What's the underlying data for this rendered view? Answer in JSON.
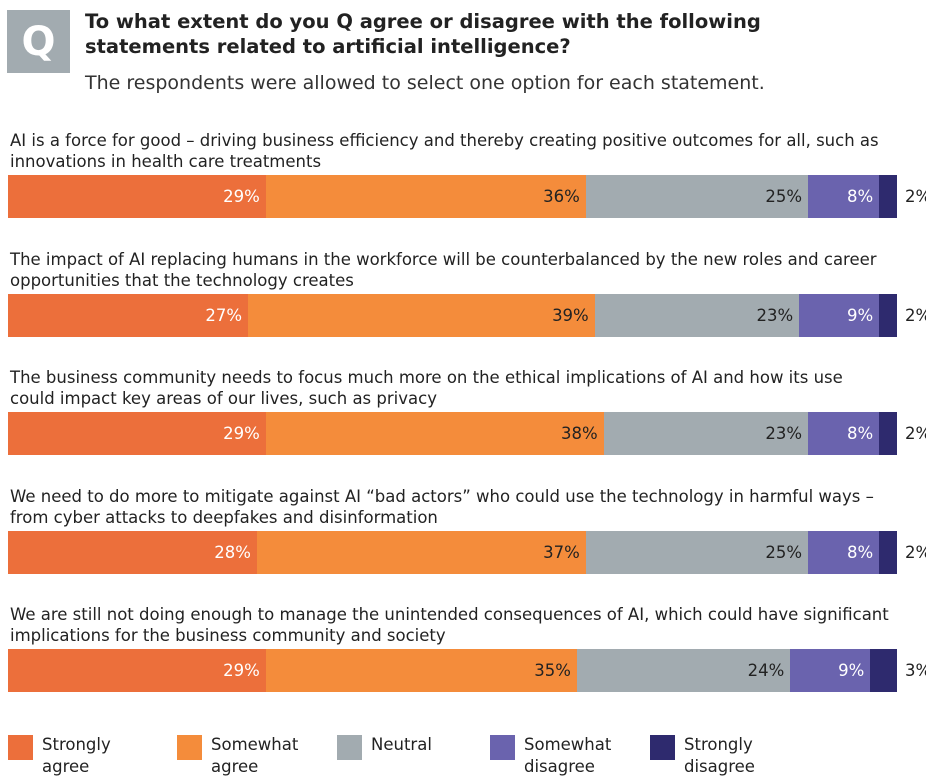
{
  "header": {
    "badge": "Q",
    "title": "To what extent do you Q agree or disagree with the following statements related to artificial intelligence?",
    "subtitle": "The respondents were allowed to select one option for each statement."
  },
  "chart_data": {
    "type": "stacked_bar_horizontal",
    "categories": [
      "AI is a force for good – driving business efficiency and thereby creating positive outcomes for all, such as innovations in health care treatments",
      "The impact of AI replacing humans in the workforce will be counterbalanced by the new roles and career opportunities that the technology creates",
      "The business community needs to focus much more on the ethical implications of AI and how its use could impact key areas of our lives, such as privacy",
      "We need to do more to mitigate against AI “bad actors” who could use the technology in harmful ways – from cyber attacks to deepfakes and disinformation",
      "We are still not doing enough to manage the unintended consequences of AI, which could have significant implications for the business community and society"
    ],
    "series": [
      {
        "name": "Strongly agree",
        "color": "#ec6f3b",
        "values": [
          29,
          27,
          29,
          28,
          29
        ],
        "value_labels": [
          "29%",
          "27%",
          "29%",
          "28%",
          "29%"
        ]
      },
      {
        "name": "Somewhat agree",
        "color": "#f48c3b",
        "values": [
          36,
          39,
          38,
          37,
          35
        ],
        "value_labels": [
          "36%",
          "39%",
          "38%",
          "37%",
          "35%"
        ]
      },
      {
        "name": "Neutral",
        "color": "#a2abb0",
        "values": [
          25,
          23,
          23,
          25,
          24
        ],
        "value_labels": [
          "25%",
          "23%",
          "23%",
          "25%",
          "24%"
        ]
      },
      {
        "name": "Somewhat disagree",
        "color": "#6a63ae",
        "values": [
          8,
          9,
          8,
          8,
          9
        ],
        "value_labels": [
          "8%",
          "9%",
          "8%",
          "8%",
          "9%"
        ]
      },
      {
        "name": "Strongly disagree",
        "color": "#2e2a6e",
        "values": [
          2,
          2,
          2,
          2,
          3
        ],
        "value_labels": [
          "2%",
          "2%",
          "2%",
          "2%",
          "3%"
        ]
      }
    ]
  }
}
